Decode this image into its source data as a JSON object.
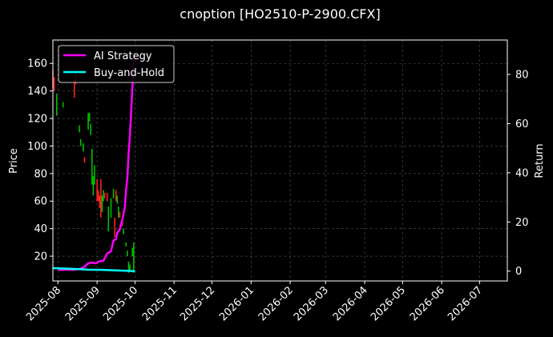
{
  "chart_data": {
    "type": "line",
    "title": "cnoption [HO2510-P-2900.CFX]",
    "ylabel": "Price",
    "y2label": "Return",
    "background": "#000000",
    "text_color": "#ffffff",
    "grid": true,
    "legend_position": "top-left",
    "xlim": [
      "2025-07-28",
      "2026-07-23"
    ],
    "ylim": [
      2,
      177
    ],
    "y2lim": [
      -4,
      94
    ],
    "x_ticks": [
      "2025-08",
      "2025-09",
      "2025-10",
      "2025-11",
      "2025-12",
      "2026-01",
      "2026-02",
      "2026-03",
      "2026-04",
      "2026-05",
      "2026-06",
      "2026-07"
    ],
    "y_ticks": [
      "20",
      "40",
      "60",
      "80",
      "100",
      "120",
      "140",
      "160"
    ],
    "y2_ticks": [
      "0",
      "20",
      "40",
      "60",
      "80"
    ],
    "series": [
      {
        "name": "AI Strategy",
        "axis": "right",
        "color": "#ff00ff",
        "points": [
          [
            "2025-08-01",
            0.5
          ],
          [
            "2025-08-04",
            0.5
          ],
          [
            "2025-08-07",
            0.6
          ],
          [
            "2025-08-10",
            0.6
          ],
          [
            "2025-08-13",
            0.5
          ],
          [
            "2025-08-16",
            0.7
          ],
          [
            "2025-08-19",
            1.0
          ],
          [
            "2025-08-22",
            1.8
          ],
          [
            "2025-08-25",
            3.2
          ],
          [
            "2025-08-28",
            3.5
          ],
          [
            "2025-08-31",
            3.2
          ],
          [
            "2025-09-03",
            4.0
          ],
          [
            "2025-09-06",
            4.2
          ],
          [
            "2025-09-09",
            7.2
          ],
          [
            "2025-09-12",
            8.0
          ],
          [
            "2025-09-14",
            12.5
          ],
          [
            "2025-09-16",
            13.0
          ],
          [
            "2025-09-17",
            15.5
          ],
          [
            "2025-09-19",
            17.0
          ],
          [
            "2025-09-21",
            21.0
          ],
          [
            "2025-09-23",
            26.0
          ],
          [
            "2025-09-24",
            33.0
          ],
          [
            "2025-09-25",
            38.0
          ],
          [
            "2025-09-26",
            48.0
          ],
          [
            "2025-09-27",
            55.0
          ],
          [
            "2025-09-28",
            65.0
          ],
          [
            "2025-09-29",
            75.0
          ],
          [
            "2025-09-30",
            85.0
          ],
          [
            "2025-10-01",
            89.0
          ]
        ]
      },
      {
        "name": "Buy-and-Hold",
        "axis": "right",
        "color": "#00ffff",
        "points": [
          [
            "2025-07-28",
            1.2
          ],
          [
            "2025-08-05",
            1.1
          ],
          [
            "2025-08-15",
            0.9
          ],
          [
            "2025-08-25",
            0.6
          ],
          [
            "2025-09-05",
            0.5
          ],
          [
            "2025-09-15",
            0.3
          ],
          [
            "2025-09-22",
            0.2
          ],
          [
            "2025-10-01",
            0.0
          ]
        ]
      }
    ],
    "candles": {
      "up_color": "#00c000",
      "down_color": "#ff2020",
      "data": [
        [
          "2025-07-28",
          155,
          142,
          "down"
        ],
        [
          "2025-07-29",
          150,
          140,
          "down"
        ],
        [
          "2025-07-31",
          122,
          138,
          "up"
        ],
        [
          "2025-08-05",
          128,
          132,
          "up"
        ],
        [
          "2025-08-14",
          148,
          135,
          "down"
        ],
        [
          "2025-08-15",
          155,
          145,
          "down"
        ],
        [
          "2025-08-18",
          110,
          115,
          "up"
        ],
        [
          "2025-08-19",
          100,
          105,
          "up"
        ],
        [
          "2025-08-21",
          96,
          102,
          "up"
        ],
        [
          "2025-08-22",
          88,
          92,
          "down"
        ],
        [
          "2025-08-25",
          112,
          124,
          "up"
        ],
        [
          "2025-08-26",
          118,
          124,
          "up"
        ],
        [
          "2025-08-27",
          108,
          116,
          "up"
        ],
        [
          "2025-08-28",
          72,
          98,
          "up"
        ],
        [
          "2025-08-29",
          64,
          78,
          "up"
        ],
        [
          "2025-08-30",
          72,
          86,
          "up"
        ],
        [
          "2025-09-01",
          60,
          76,
          "down"
        ],
        [
          "2025-09-02",
          60,
          68,
          "down"
        ],
        [
          "2025-09-03",
          55,
          64,
          "down"
        ],
        [
          "2025-09-04",
          48,
          76,
          "down"
        ],
        [
          "2025-09-05",
          52,
          64,
          "up"
        ],
        [
          "2025-09-06",
          60,
          68,
          "up"
        ],
        [
          "2025-09-07",
          62,
          66,
          "down"
        ],
        [
          "2025-09-09",
          60,
          66,
          "down"
        ],
        [
          "2025-09-10",
          38,
          56,
          "up"
        ],
        [
          "2025-09-12",
          48,
          62,
          "up"
        ],
        [
          "2025-09-14",
          62,
          69,
          "up"
        ],
        [
          "2025-09-15",
          34,
          48,
          "down"
        ],
        [
          "2025-09-16",
          60,
          68,
          "down"
        ],
        [
          "2025-09-17",
          58,
          64,
          "up"
        ],
        [
          "2025-09-18",
          48,
          56,
          "up"
        ],
        [
          "2025-09-19",
          48,
          52,
          "down"
        ],
        [
          "2025-09-21",
          42,
          46,
          "down"
        ],
        [
          "2025-09-22",
          36,
          40,
          "up"
        ],
        [
          "2025-09-24",
          27,
          30,
          "up"
        ],
        [
          "2025-09-25",
          20,
          24,
          "up"
        ],
        [
          "2025-09-26",
          8,
          16,
          "up"
        ],
        [
          "2025-09-27",
          10,
          14,
          "up"
        ],
        [
          "2025-09-29",
          20,
          26,
          "up"
        ],
        [
          "2025-09-30",
          8,
          30,
          "up"
        ]
      ]
    }
  }
}
